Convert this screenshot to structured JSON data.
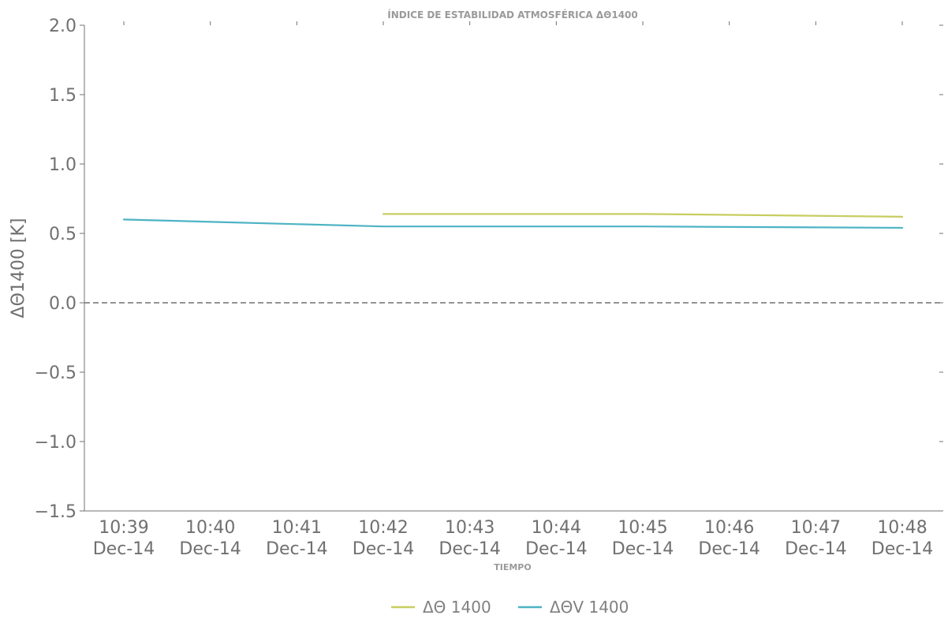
{
  "chart_data": {
    "type": "line",
    "title": "ÍNDICE DE ESTABILIDAD ATMOSFÉRICA ΔΘ1400",
    "xlabel": "TIEMPO",
    "ylabel": "ΔΘ1400 [K]",
    "ylim": [
      -1.5,
      2.0
    ],
    "yticks": [
      "2.0",
      "1.5",
      "1.0",
      "0.5",
      "0.0",
      "−0.5",
      "−1.0",
      "−1.5"
    ],
    "ytick_values": [
      2.0,
      1.5,
      1.0,
      0.5,
      0.0,
      -0.5,
      -1.0,
      -1.5
    ],
    "x_categories": [
      "10:39",
      "10:40",
      "10:41",
      "10:42",
      "10:43",
      "10:44",
      "10:45",
      "10:46",
      "10:47",
      "10:48"
    ],
    "x_tick_labels": [
      [
        "10:39",
        "Dec-14"
      ],
      [
        "10:40",
        "Dec-14"
      ],
      [
        "10:41",
        "Dec-14"
      ],
      [
        "10:42",
        "Dec-14"
      ],
      [
        "10:43",
        "Dec-14"
      ],
      [
        "10:44",
        "Dec-14"
      ],
      [
        "10:45",
        "Dec-14"
      ],
      [
        "10:46",
        "Dec-14"
      ],
      [
        "10:47",
        "Dec-14"
      ],
      [
        "10:48",
        "Dec-14"
      ]
    ],
    "reference_line": {
      "y": 0.0,
      "style": "dashed"
    },
    "grid": false,
    "legend_position": "bottom-center",
    "series": [
      {
        "name": "ΔΘ 1400",
        "color": "#c8cd5f",
        "x": [
          "10:42",
          "10:45",
          "10:48"
        ],
        "values": [
          0.64,
          0.64,
          0.62
        ]
      },
      {
        "name": "ΔΘV 1400",
        "color": "#4db3c4",
        "x": [
          "10:39",
          "10:42",
          "10:45",
          "10:48"
        ],
        "values": [
          0.6,
          0.55,
          0.55,
          0.54
        ]
      }
    ]
  }
}
